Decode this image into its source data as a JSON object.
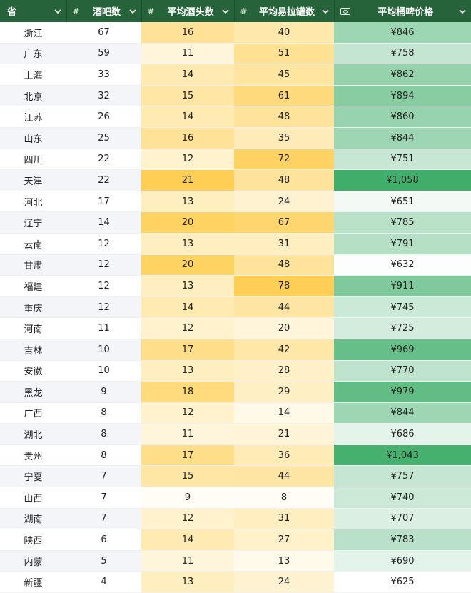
{
  "columns": [
    {
      "type": "",
      "label": "省"
    },
    {
      "type": "#",
      "label": "酒吧数"
    },
    {
      "type": "#",
      "label": "平均酒头数"
    },
    {
      "type": "#",
      "label": "平均易拉罐数"
    },
    {
      "type": "currency",
      "label": "平均桶啤价格"
    }
  ],
  "rows": [
    {
      "province": "浙江",
      "bars": "67",
      "taps": "16",
      "cans": "40",
      "price": "¥846"
    },
    {
      "province": "广东",
      "bars": "59",
      "taps": "11",
      "cans": "51",
      "price": "¥758"
    },
    {
      "province": "上海",
      "bars": "33",
      "taps": "14",
      "cans": "45",
      "price": "¥862"
    },
    {
      "province": "北京",
      "bars": "32",
      "taps": "15",
      "cans": "61",
      "price": "¥894"
    },
    {
      "province": "江苏",
      "bars": "26",
      "taps": "14",
      "cans": "48",
      "price": "¥860"
    },
    {
      "province": "山东",
      "bars": "25",
      "taps": "16",
      "cans": "35",
      "price": "¥844"
    },
    {
      "province": "四川",
      "bars": "22",
      "taps": "12",
      "cans": "72",
      "price": "¥751"
    },
    {
      "province": "天津",
      "bars": "22",
      "taps": "21",
      "cans": "48",
      "price": "¥1,058"
    },
    {
      "province": "河北",
      "bars": "17",
      "taps": "13",
      "cans": "24",
      "price": "¥651"
    },
    {
      "province": "辽宁",
      "bars": "14",
      "taps": "20",
      "cans": "67",
      "price": "¥785"
    },
    {
      "province": "云南",
      "bars": "12",
      "taps": "13",
      "cans": "31",
      "price": "¥791"
    },
    {
      "province": "甘肃",
      "bars": "12",
      "taps": "20",
      "cans": "48",
      "price": "¥632"
    },
    {
      "province": "福建",
      "bars": "12",
      "taps": "13",
      "cans": "78",
      "price": "¥911"
    },
    {
      "province": "重庆",
      "bars": "12",
      "taps": "14",
      "cans": "44",
      "price": "¥745"
    },
    {
      "province": "河南",
      "bars": "11",
      "taps": "12",
      "cans": "20",
      "price": "¥725"
    },
    {
      "province": "吉林",
      "bars": "10",
      "taps": "17",
      "cans": "42",
      "price": "¥969"
    },
    {
      "province": "安徽",
      "bars": "10",
      "taps": "13",
      "cans": "28",
      "price": "¥770"
    },
    {
      "province": "黑龙",
      "bars": "9",
      "taps": "18",
      "cans": "29",
      "price": "¥979"
    },
    {
      "province": "广西",
      "bars": "8",
      "taps": "12",
      "cans": "14",
      "price": "¥844"
    },
    {
      "province": "湖北",
      "bars": "8",
      "taps": "11",
      "cans": "21",
      "price": "¥686"
    },
    {
      "province": "贵州",
      "bars": "8",
      "taps": "17",
      "cans": "36",
      "price": "¥1,043"
    },
    {
      "province": "宁夏",
      "bars": "7",
      "taps": "15",
      "cans": "44",
      "price": "¥757"
    },
    {
      "province": "山西",
      "bars": "7",
      "taps": "9",
      "cans": "8",
      "price": "¥740"
    },
    {
      "province": "湖南",
      "bars": "7",
      "taps": "12",
      "cans": "31",
      "price": "¥707"
    },
    {
      "province": "陕西",
      "bars": "6",
      "taps": "14",
      "cans": "27",
      "price": "¥783"
    },
    {
      "province": "内蒙",
      "bars": "5",
      "taps": "11",
      "cans": "13",
      "price": "¥690"
    },
    {
      "province": "新疆",
      "bars": "4",
      "taps": "13",
      "cans": "24",
      "price": "¥625"
    }
  ],
  "colors": {
    "header_bg": "#26633a",
    "yellow_low": "#fffdf5",
    "yellow_high": "#ffcf55",
    "green_low": "#ffffff",
    "green_high": "#3fae6a"
  },
  "icons": {
    "sort": "chevron-down-icon",
    "currency": "currency-icon"
  }
}
